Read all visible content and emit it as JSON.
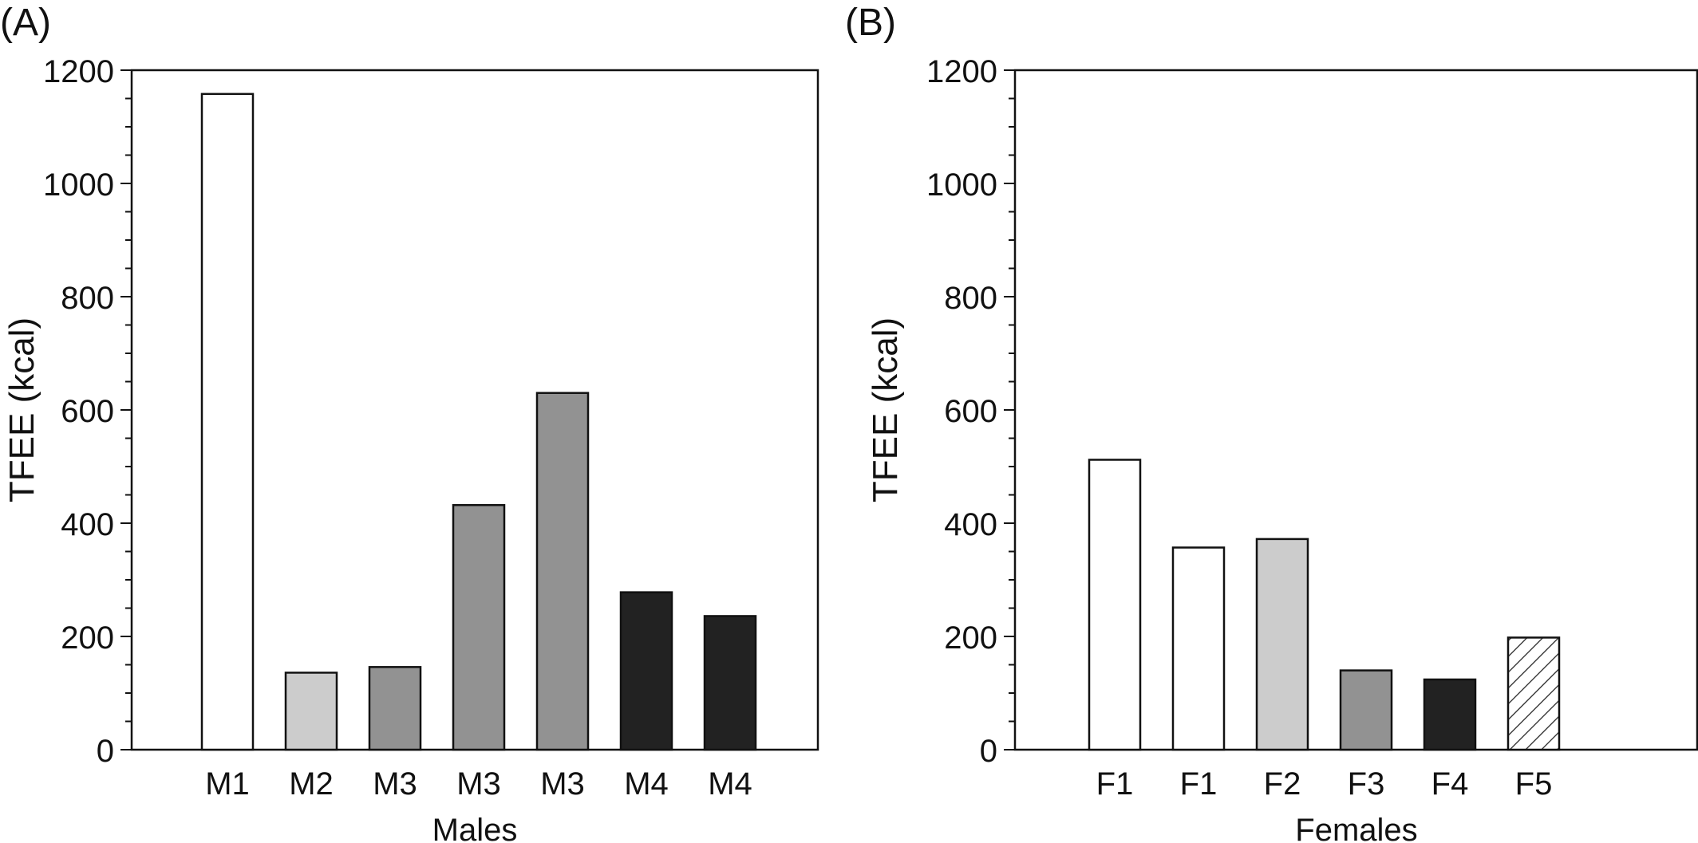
{
  "chart_data": [
    {
      "panel_label": "(A)",
      "type": "bar",
      "categories": [
        "M1",
        "M2",
        "M3",
        "M3",
        "M3",
        "M4",
        "M4"
      ],
      "values": [
        1158,
        136,
        146,
        432,
        630,
        278,
        236
      ],
      "bar_fills": [
        "#ffffff",
        "#cccccc",
        "#929292",
        "#929292",
        "#929292",
        "#222222",
        "#222222"
      ],
      "xlabel": "Males",
      "ylabel": "TFEE (kcal)",
      "ylim": [
        0,
        1200
      ],
      "yticks": [
        "0",
        "200",
        "400",
        "600",
        "800",
        "1000",
        "1200"
      ],
      "grid": false
    },
    {
      "panel_label": "(B)",
      "type": "bar",
      "categories": [
        "F1",
        "F1",
        "F2",
        "F3",
        "F4",
        "F5"
      ],
      "values": [
        512,
        357,
        372,
        140,
        124,
        198
      ],
      "bar_fills": [
        "#ffffff",
        "#ffffff",
        "#cccccc",
        "#929292",
        "#222222",
        "hatch"
      ],
      "xlabel": "Females",
      "ylabel": "TFEE (kcal)",
      "ylim": [
        0,
        1200
      ],
      "yticks": [
        "0",
        "200",
        "400",
        "600",
        "800",
        "1000",
        "1200"
      ],
      "grid": false
    }
  ]
}
